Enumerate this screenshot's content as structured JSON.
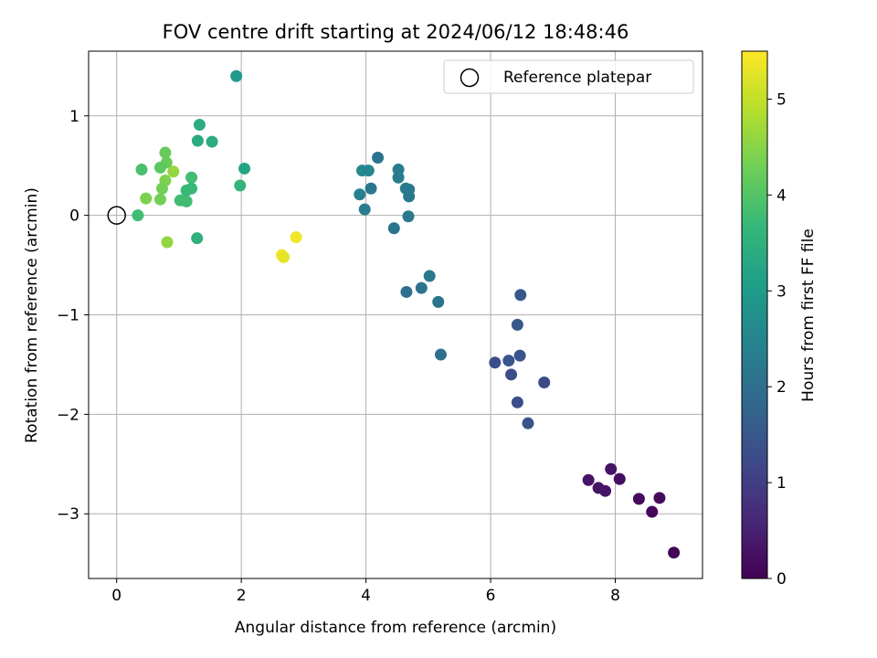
{
  "chart_data": {
    "type": "scatter",
    "title": "FOV centre drift starting at 2024/06/12 18:48:46",
    "xlabel": "Angular distance from reference (arcmin)",
    "ylabel": "Rotation from reference (arcmin)",
    "xlim": [
      -0.45,
      9.4
    ],
    "ylim": [
      -3.65,
      1.65
    ],
    "xticks": [
      0,
      2,
      4,
      6,
      8
    ],
    "xtick_labels": [
      "0",
      "2",
      "4",
      "6",
      "8"
    ],
    "yticks": [
      1,
      0,
      -1,
      -2,
      -3
    ],
    "ytick_labels": [
      "1",
      "0",
      "−1",
      "−2",
      "−3"
    ],
    "grid": true,
    "legend": {
      "placement": "top-right",
      "entries": [
        {
          "label": "Reference platepar",
          "marker": "open-circle",
          "x": 0,
          "y": 0
        }
      ]
    },
    "colorbar": {
      "label": "Hours from first FF file",
      "colormap": "viridis",
      "range": [
        0,
        5.5
      ],
      "ticks": [
        0,
        1,
        2,
        3,
        4,
        5
      ],
      "tick_labels": [
        "0",
        "1",
        "2",
        "3",
        "4",
        "5"
      ]
    },
    "points": [
      {
        "x": 1.92,
        "y": 1.4,
        "h": 3.0
      },
      {
        "x": 1.33,
        "y": 0.91,
        "h": 3.4
      },
      {
        "x": 1.3,
        "y": 0.75,
        "h": 3.4
      },
      {
        "x": 1.53,
        "y": 0.74,
        "h": 3.4
      },
      {
        "x": 0.78,
        "y": 0.63,
        "h": 4.2
      },
      {
        "x": 0.8,
        "y": 0.53,
        "h": 4.2
      },
      {
        "x": 0.7,
        "y": 0.48,
        "h": 4.1
      },
      {
        "x": 0.4,
        "y": 0.46,
        "h": 3.9
      },
      {
        "x": 0.91,
        "y": 0.44,
        "h": 4.6
      },
      {
        "x": 2.05,
        "y": 0.47,
        "h": 3.2
      },
      {
        "x": 1.2,
        "y": 0.38,
        "h": 3.8
      },
      {
        "x": 0.78,
        "y": 0.35,
        "h": 4.4
      },
      {
        "x": 0.73,
        "y": 0.27,
        "h": 4.3
      },
      {
        "x": 1.2,
        "y": 0.27,
        "h": 3.7
      },
      {
        "x": 1.12,
        "y": 0.25,
        "h": 3.7
      },
      {
        "x": 1.98,
        "y": 0.3,
        "h": 3.6
      },
      {
        "x": 0.47,
        "y": 0.17,
        "h": 4.4
      },
      {
        "x": 0.7,
        "y": 0.16,
        "h": 4.3
      },
      {
        "x": 1.02,
        "y": 0.15,
        "h": 3.8
      },
      {
        "x": 1.12,
        "y": 0.14,
        "h": 3.8
      },
      {
        "x": 0.34,
        "y": 0.0,
        "h": 3.8
      },
      {
        "x": 0.81,
        "y": -0.27,
        "h": 4.6
      },
      {
        "x": 1.29,
        "y": -0.23,
        "h": 3.5
      },
      {
        "x": 2.88,
        "y": -0.22,
        "h": 5.4
      },
      {
        "x": 2.65,
        "y": -0.4,
        "h": 5.4
      },
      {
        "x": 2.68,
        "y": -0.42,
        "h": 5.3
      },
      {
        "x": 4.19,
        "y": 0.58,
        "h": 2.1
      },
      {
        "x": 3.94,
        "y": 0.45,
        "h": 2.6
      },
      {
        "x": 4.04,
        "y": 0.45,
        "h": 2.5
      },
      {
        "x": 4.52,
        "y": 0.46,
        "h": 2.3
      },
      {
        "x": 4.52,
        "y": 0.38,
        "h": 2.3
      },
      {
        "x": 4.08,
        "y": 0.27,
        "h": 2.2
      },
      {
        "x": 4.64,
        "y": 0.27,
        "h": 2.3
      },
      {
        "x": 4.69,
        "y": 0.26,
        "h": 2.2
      },
      {
        "x": 3.9,
        "y": 0.21,
        "h": 2.4
      },
      {
        "x": 4.69,
        "y": 0.19,
        "h": 2.2
      },
      {
        "x": 3.98,
        "y": 0.06,
        "h": 2.3
      },
      {
        "x": 4.68,
        "y": -0.01,
        "h": 2.2
      },
      {
        "x": 4.45,
        "y": -0.13,
        "h": 2.1
      },
      {
        "x": 5.02,
        "y": -0.61,
        "h": 2.2
      },
      {
        "x": 4.89,
        "y": -0.73,
        "h": 2.1
      },
      {
        "x": 4.65,
        "y": -0.77,
        "h": 2.0
      },
      {
        "x": 5.16,
        "y": -0.87,
        "h": 2.1
      },
      {
        "x": 5.2,
        "y": -1.4,
        "h": 2.0
      },
      {
        "x": 6.48,
        "y": -0.8,
        "h": 1.5
      },
      {
        "x": 6.43,
        "y": -1.1,
        "h": 1.5
      },
      {
        "x": 6.47,
        "y": -1.41,
        "h": 1.4
      },
      {
        "x": 6.29,
        "y": -1.46,
        "h": 1.4
      },
      {
        "x": 6.07,
        "y": -1.48,
        "h": 1.3
      },
      {
        "x": 6.33,
        "y": -1.6,
        "h": 1.3
      },
      {
        "x": 6.86,
        "y": -1.68,
        "h": 1.2
      },
      {
        "x": 6.43,
        "y": -1.88,
        "h": 1.3
      },
      {
        "x": 6.6,
        "y": -2.09,
        "h": 1.4
      },
      {
        "x": 7.93,
        "y": -2.55,
        "h": 0.3
      },
      {
        "x": 7.57,
        "y": -2.66,
        "h": 0.3
      },
      {
        "x": 8.07,
        "y": -2.65,
        "h": 0.2
      },
      {
        "x": 7.73,
        "y": -2.74,
        "h": 0.3
      },
      {
        "x": 7.84,
        "y": -2.77,
        "h": 0.3
      },
      {
        "x": 8.38,
        "y": -2.85,
        "h": 0.15
      },
      {
        "x": 8.71,
        "y": -2.84,
        "h": 0.15
      },
      {
        "x": 8.59,
        "y": -2.98,
        "h": 0.1
      },
      {
        "x": 8.94,
        "y": -3.39,
        "h": 0.05
      }
    ]
  }
}
